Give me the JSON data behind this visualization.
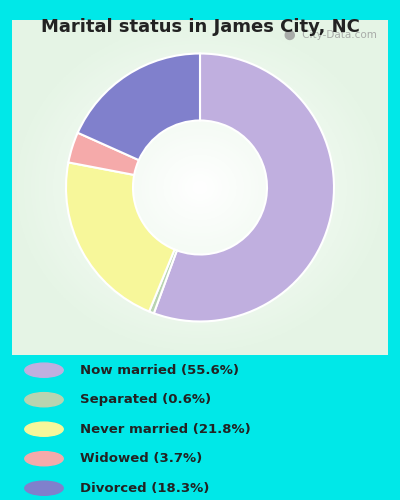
{
  "title": "Marital status in James City, NC",
  "slices": [
    {
      "label": "Now married (55.6%)",
      "value": 55.6,
      "color": "#C0AFDF"
    },
    {
      "label": "Separated (0.6%)",
      "value": 0.6,
      "color": "#B8D4B0"
    },
    {
      "label": "Never married (21.8%)",
      "value": 21.8,
      "color": "#F7F79A"
    },
    {
      "label": "Widowed (3.7%)",
      "value": 3.7,
      "color": "#F5AAAA"
    },
    {
      "label": "Divorced (18.3%)",
      "value": 18.3,
      "color": "#8080CC"
    }
  ],
  "legend_colors": [
    "#C0AFDF",
    "#B8D4B0",
    "#F7F79A",
    "#F5AAAA",
    "#8080CC"
  ],
  "legend_labels": [
    "Now married (55.6%)",
    "Separated (0.6%)",
    "Never married (21.8%)",
    "Widowed (3.7%)",
    "Divorced (18.3%)"
  ],
  "background_outer": "#00E8E8",
  "title_fontsize": 13,
  "title_color": "#222222",
  "watermark": "City-Data.com",
  "figsize": [
    4.0,
    5.0
  ],
  "dpi": 100
}
